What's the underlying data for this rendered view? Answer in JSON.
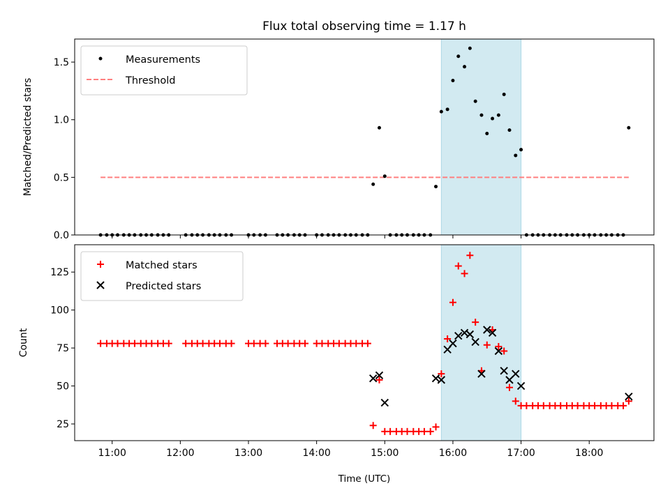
{
  "title": "Flux total observing time = 1.17 h",
  "xlabel": "Time (UTC)",
  "colors": {
    "measurements": "#000000",
    "threshold": "#ff7f7f",
    "band": "#add8e6",
    "matched": "#ff0000",
    "predicted": "#000000"
  },
  "chart_data": [
    {
      "type": "scatter",
      "ylabel": "Matched/Predicted stars",
      "ylim": [
        0,
        1.7
      ],
      "yticks": [
        0.0,
        0.5,
        1.0,
        1.5
      ],
      "ytick_labels": [
        "0.0",
        "0.5",
        "1.0",
        "1.5"
      ],
      "xlim": [
        10.45,
        18.95
      ],
      "xticks": [
        11,
        12,
        13,
        14,
        15,
        16,
        17,
        18
      ],
      "xtick_labels": [
        "11:00",
        "12:00",
        "13:00",
        "14:00",
        "15:00",
        "16:00",
        "17:00",
        "18:00"
      ],
      "highlight_band": [
        15.83,
        17.0
      ],
      "legend_position": "upper-left",
      "threshold": {
        "name": "Threshold",
        "y": 0.5,
        "x_range": [
          10.83,
          18.58
        ]
      },
      "series": [
        {
          "name": "Measurements",
          "marker": "dot",
          "x": [
            10.83,
            10.92,
            11.0,
            11.08,
            11.17,
            11.25,
            11.33,
            11.42,
            11.5,
            11.58,
            11.67,
            11.75,
            11.83,
            12.08,
            12.17,
            12.25,
            12.33,
            12.42,
            12.5,
            12.58,
            12.67,
            12.75,
            13.0,
            13.08,
            13.17,
            13.25,
            13.42,
            13.5,
            13.58,
            13.67,
            13.75,
            13.83,
            14.0,
            14.08,
            14.17,
            14.25,
            14.33,
            14.42,
            14.5,
            14.58,
            14.67,
            14.75,
            14.83,
            14.92,
            15.0,
            15.08,
            15.17,
            15.25,
            15.33,
            15.42,
            15.5,
            15.58,
            15.67,
            15.75,
            15.83,
            15.92,
            16.0,
            16.08,
            16.17,
            16.25,
            16.33,
            16.42,
            16.5,
            16.58,
            16.67,
            16.75,
            16.83,
            16.92,
            17.0,
            17.08,
            17.17,
            17.25,
            17.33,
            17.42,
            17.5,
            17.58,
            17.67,
            17.75,
            17.83,
            17.92,
            18.0,
            18.08,
            18.17,
            18.25,
            18.33,
            18.42,
            18.5,
            18.58
          ],
          "y": [
            0,
            0,
            0,
            0,
            0,
            0,
            0,
            0,
            0,
            0,
            0,
            0,
            0,
            0,
            0,
            0,
            0,
            0,
            0,
            0,
            0,
            0,
            0,
            0,
            0,
            0,
            0,
            0,
            0,
            0,
            0,
            0,
            0,
            0,
            0,
            0,
            0,
            0,
            0,
            0,
            0,
            0,
            0.44,
            0.93,
            0.51,
            0,
            0,
            0,
            0,
            0,
            0,
            0,
            0,
            0.42,
            1.07,
            1.09,
            1.34,
            1.55,
            1.46,
            1.62,
            1.16,
            1.04,
            0.88,
            1.01,
            1.04,
            1.22,
            0.91,
            0.69,
            0.74,
            0,
            0,
            0,
            0,
            0,
            0,
            0,
            0,
            0,
            0,
            0,
            0,
            0,
            0,
            0,
            0,
            0,
            0,
            0.93
          ]
        }
      ]
    },
    {
      "type": "scatter",
      "ylabel": "Count",
      "ylim": [
        14,
        143
      ],
      "yticks": [
        25,
        50,
        75,
        100,
        125
      ],
      "ytick_labels": [
        "25",
        "50",
        "75",
        "100",
        "125"
      ],
      "xlim": [
        10.45,
        18.95
      ],
      "xticks": [
        11,
        12,
        13,
        14,
        15,
        16,
        17,
        18
      ],
      "xtick_labels": [
        "11:00",
        "12:00",
        "13:00",
        "14:00",
        "15:00",
        "16:00",
        "17:00",
        "18:00"
      ],
      "highlight_band": [
        15.83,
        17.0
      ],
      "legend_position": "upper-left",
      "series": [
        {
          "name": "Matched stars",
          "marker": "plus",
          "x": [
            10.83,
            10.92,
            11.0,
            11.08,
            11.17,
            11.25,
            11.33,
            11.42,
            11.5,
            11.58,
            11.67,
            11.75,
            11.83,
            12.08,
            12.17,
            12.25,
            12.33,
            12.42,
            12.5,
            12.58,
            12.67,
            12.75,
            13.0,
            13.08,
            13.17,
            13.25,
            13.42,
            13.5,
            13.58,
            13.67,
            13.75,
            13.83,
            14.0,
            14.08,
            14.17,
            14.25,
            14.33,
            14.42,
            14.5,
            14.58,
            14.67,
            14.75,
            14.83,
            14.92,
            15.0,
            15.08,
            15.17,
            15.25,
            15.33,
            15.42,
            15.5,
            15.58,
            15.67,
            15.75,
            15.83,
            15.92,
            16.0,
            16.08,
            16.17,
            16.25,
            16.33,
            16.42,
            16.5,
            16.58,
            16.67,
            16.75,
            16.83,
            16.92,
            17.0,
            17.08,
            17.17,
            17.25,
            17.33,
            17.42,
            17.5,
            17.58,
            17.67,
            17.75,
            17.83,
            17.92,
            18.0,
            18.08,
            18.17,
            18.25,
            18.33,
            18.42,
            18.5,
            18.58
          ],
          "y": [
            78,
            78,
            78,
            78,
            78,
            78,
            78,
            78,
            78,
            78,
            78,
            78,
            78,
            78,
            78,
            78,
            78,
            78,
            78,
            78,
            78,
            78,
            78,
            78,
            78,
            78,
            78,
            78,
            78,
            78,
            78,
            78,
            78,
            78,
            78,
            78,
            78,
            78,
            78,
            78,
            78,
            78,
            24,
            54,
            20,
            20,
            20,
            20,
            20,
            20,
            20,
            20,
            20,
            23,
            58,
            81,
            105,
            129,
            124,
            136,
            92,
            60,
            77,
            87,
            76,
            73,
            49,
            40,
            37,
            37,
            37,
            37,
            37,
            37,
            37,
            37,
            37,
            37,
            37,
            37,
            37,
            37,
            37,
            37,
            37,
            37,
            37,
            40
          ]
        },
        {
          "name": "Predicted stars",
          "marker": "x",
          "x": [
            14.83,
            14.92,
            15.0,
            15.75,
            15.83,
            15.92,
            16.0,
            16.08,
            16.17,
            16.25,
            16.33,
            16.42,
            16.5,
            16.58,
            16.67,
            16.75,
            16.83,
            16.92,
            17.0,
            18.58
          ],
          "y": [
            55,
            57,
            39,
            55,
            54,
            74,
            78,
            83,
            85,
            84,
            79,
            58,
            87,
            85,
            73,
            60,
            54,
            58,
            50,
            43
          ]
        }
      ]
    }
  ]
}
